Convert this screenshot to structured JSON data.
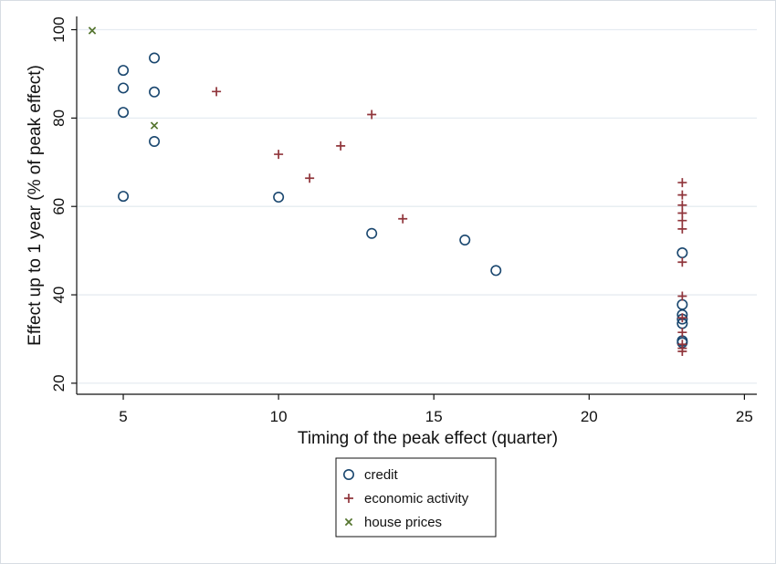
{
  "chart_data": {
    "type": "scatter",
    "title": "",
    "xlabel": "Timing of the peak effect (quarter)",
    "ylabel": "Effect up to 1 year (% of peak effect)",
    "xlim": [
      3.5,
      25.4
    ],
    "ylim": [
      17.5,
      103
    ],
    "x_ticks": [
      5,
      10,
      15,
      20,
      25
    ],
    "y_ticks": [
      20,
      40,
      60,
      80,
      100
    ],
    "grid": "horizontal",
    "legend_position": "bottom-center",
    "series": [
      {
        "name": "credit",
        "marker": "circle",
        "color": "#1a476f",
        "points": [
          [
            5,
            90.8
          ],
          [
            5,
            86.8
          ],
          [
            5,
            81.3
          ],
          [
            5,
            62.3
          ],
          [
            6,
            93.6
          ],
          [
            6,
            85.9
          ],
          [
            6,
            74.7
          ],
          [
            10,
            62.1
          ],
          [
            13,
            53.9
          ],
          [
            16,
            52.4
          ],
          [
            17,
            45.5
          ],
          [
            23,
            49.5
          ],
          [
            23,
            37.8
          ],
          [
            23,
            35.5
          ],
          [
            23,
            34.5
          ],
          [
            23,
            33.5
          ],
          [
            23,
            29.6
          ],
          [
            23,
            29.2
          ]
        ]
      },
      {
        "name": "economic activity",
        "marker": "plus",
        "color": "#90353b",
        "points": [
          [
            8,
            86.0
          ],
          [
            10,
            71.8
          ],
          [
            11,
            66.4
          ],
          [
            12,
            73.7
          ],
          [
            13,
            80.8
          ],
          [
            14,
            57.2
          ],
          [
            23,
            65.4
          ],
          [
            23,
            62.6
          ],
          [
            23,
            60.3
          ],
          [
            23,
            58.5
          ],
          [
            23,
            56.8
          ],
          [
            23,
            54.9
          ],
          [
            23,
            47.4
          ],
          [
            23,
            39.7
          ],
          [
            23,
            34.8
          ],
          [
            23,
            31.5
          ],
          [
            23,
            28.8
          ],
          [
            23,
            27.9
          ],
          [
            23,
            27.2
          ]
        ]
      },
      {
        "name": "house prices",
        "marker": "x",
        "color": "#55752f",
        "points": [
          [
            4,
            99.8
          ],
          [
            6,
            78.3
          ]
        ]
      }
    ]
  }
}
